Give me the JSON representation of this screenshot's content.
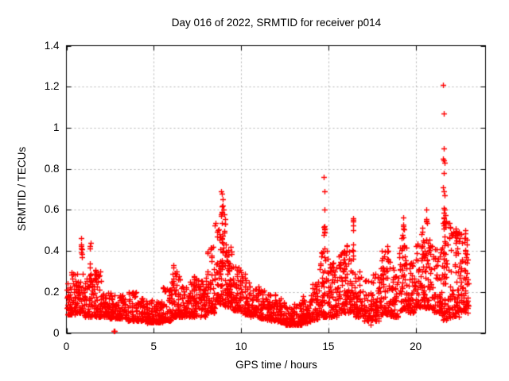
{
  "window": {
    "background": "#ffffff"
  },
  "chart_data": {
    "type": "scatter",
    "title": "Day 016 of 2022, SRMTID for receiver p014",
    "xlabel": "GPS time / hours",
    "ylabel": "SRMTID / TECUs",
    "xlim": [
      0,
      24
    ],
    "ylim": [
      0,
      1.4
    ],
    "x_ticks": [
      0,
      5,
      10,
      15,
      20
    ],
    "x_tick_labels": [
      "0",
      "5",
      "10",
      "15",
      "20"
    ],
    "y_ticks": [
      0,
      0.2,
      0.4,
      0.6,
      0.8,
      1.0,
      1.2,
      1.4
    ],
    "y_tick_labels": [
      "0",
      "0.2",
      "0.4",
      "0.6",
      "0.8",
      "1",
      "1.2",
      "1.4"
    ],
    "grid": true,
    "legend_position": "none",
    "marker": {
      "shape": "plus",
      "color": "#ff0000",
      "size": 7
    },
    "grid_color": "#b3b3b3",
    "border_color": "#000000",
    "point_seed": 20220116,
    "dense_bands": [
      [
        0.0,
        0.5,
        0.09,
        0.3,
        55
      ],
      [
        0.5,
        1.0,
        0.1,
        0.3,
        55
      ],
      [
        1.0,
        1.5,
        0.08,
        0.29,
        55
      ],
      [
        1.5,
        2.0,
        0.08,
        0.3,
        55
      ],
      [
        2.0,
        2.5,
        0.08,
        0.22,
        50
      ],
      [
        2.5,
        3.0,
        0.07,
        0.2,
        50
      ],
      [
        3.0,
        3.5,
        0.07,
        0.19,
        48
      ],
      [
        3.5,
        4.0,
        0.06,
        0.2,
        48
      ],
      [
        4.0,
        4.5,
        0.06,
        0.17,
        48
      ],
      [
        4.5,
        5.0,
        0.05,
        0.16,
        48
      ],
      [
        5.0,
        5.5,
        0.05,
        0.16,
        48
      ],
      [
        5.5,
        6.0,
        0.06,
        0.24,
        50
      ],
      [
        6.0,
        6.5,
        0.08,
        0.31,
        55
      ],
      [
        6.5,
        7.0,
        0.08,
        0.23,
        50
      ],
      [
        7.0,
        7.5,
        0.08,
        0.29,
        55
      ],
      [
        7.5,
        8.0,
        0.08,
        0.27,
        52
      ],
      [
        8.0,
        8.5,
        0.1,
        0.42,
        60
      ],
      [
        8.5,
        9.0,
        0.14,
        0.54,
        70
      ],
      [
        9.0,
        9.5,
        0.13,
        0.5,
        70
      ],
      [
        9.5,
        10.0,
        0.11,
        0.33,
        60
      ],
      [
        10.0,
        10.5,
        0.09,
        0.3,
        55
      ],
      [
        10.5,
        11.0,
        0.08,
        0.23,
        52
      ],
      [
        11.0,
        11.5,
        0.07,
        0.21,
        50
      ],
      [
        11.5,
        12.0,
        0.06,
        0.19,
        50
      ],
      [
        12.0,
        12.5,
        0.05,
        0.17,
        50
      ],
      [
        12.5,
        13.0,
        0.04,
        0.15,
        50
      ],
      [
        13.0,
        13.5,
        0.04,
        0.15,
        50
      ],
      [
        13.5,
        14.0,
        0.05,
        0.19,
        50
      ],
      [
        14.0,
        14.5,
        0.06,
        0.25,
        50
      ],
      [
        14.5,
        15.0,
        0.08,
        0.4,
        58
      ],
      [
        15.0,
        15.5,
        0.08,
        0.35,
        55
      ],
      [
        15.5,
        16.0,
        0.1,
        0.4,
        55
      ],
      [
        16.0,
        16.5,
        0.1,
        0.44,
        58
      ],
      [
        16.5,
        17.0,
        0.08,
        0.31,
        52
      ],
      [
        17.0,
        17.5,
        0.06,
        0.26,
        50
      ],
      [
        17.5,
        18.0,
        0.06,
        0.29,
        50
      ],
      [
        18.0,
        18.5,
        0.09,
        0.4,
        55
      ],
      [
        18.5,
        19.0,
        0.08,
        0.35,
        55
      ],
      [
        19.0,
        19.5,
        0.11,
        0.49,
        58
      ],
      [
        19.5,
        20.0,
        0.1,
        0.36,
        55
      ],
      [
        20.0,
        20.5,
        0.12,
        0.5,
        58
      ],
      [
        20.5,
        21.0,
        0.12,
        0.46,
        55
      ],
      [
        21.0,
        21.5,
        0.1,
        0.41,
        55
      ],
      [
        21.5,
        22.0,
        0.06,
        0.58,
        68
      ],
      [
        22.0,
        22.5,
        0.08,
        0.5,
        60
      ],
      [
        22.5,
        23.05,
        0.1,
        0.5,
        62
      ]
    ],
    "spike_clusters": [
      [
        0.85,
        0.06,
        0.3,
        0.47,
        8
      ],
      [
        1.37,
        0.05,
        0.28,
        0.45,
        6
      ],
      [
        1.65,
        0.06,
        0.25,
        0.33,
        5
      ],
      [
        6.1,
        0.08,
        0.22,
        0.33,
        6
      ],
      [
        7.3,
        0.08,
        0.2,
        0.3,
        6
      ],
      [
        8.9,
        0.1,
        0.44,
        0.62,
        9
      ],
      [
        9.1,
        0.07,
        0.38,
        0.56,
        6
      ],
      [
        14.75,
        0.05,
        0.4,
        0.52,
        8
      ],
      [
        15.9,
        0.06,
        0.3,
        0.42,
        6
      ],
      [
        16.4,
        0.05,
        0.4,
        0.56,
        7
      ],
      [
        18.4,
        0.07,
        0.3,
        0.43,
        7
      ],
      [
        19.3,
        0.06,
        0.4,
        0.6,
        8
      ],
      [
        20.35,
        0.06,
        0.38,
        0.52,
        7
      ],
      [
        20.62,
        0.05,
        0.45,
        0.6,
        6
      ],
      [
        21.65,
        0.08,
        0.35,
        0.6,
        10
      ],
      [
        22.3,
        0.06,
        0.38,
        0.53,
        7
      ],
      [
        22.85,
        0.07,
        0.3,
        0.52,
        8
      ]
    ],
    "outlier_points": [
      [
        2.7,
        0.01
      ],
      [
        2.76,
        0.01
      ],
      [
        8.88,
        0.69
      ],
      [
        8.92,
        0.68
      ],
      [
        8.95,
        0.65
      ],
      [
        8.93,
        0.62
      ],
      [
        9.0,
        0.6
      ],
      [
        9.03,
        0.58
      ],
      [
        14.74,
        0.76
      ],
      [
        14.76,
        0.69
      ],
      [
        14.78,
        0.6
      ],
      [
        17.4,
        0.04
      ],
      [
        20.62,
        0.6
      ],
      [
        21.58,
        1.21
      ],
      [
        21.62,
        1.07
      ],
      [
        21.6,
        0.9
      ],
      [
        21.56,
        0.85
      ],
      [
        21.61,
        0.84
      ],
      [
        21.65,
        0.83
      ],
      [
        21.63,
        0.78
      ],
      [
        21.57,
        0.71
      ],
      [
        21.6,
        0.69
      ],
      [
        21.64,
        0.67
      ],
      [
        21.59,
        0.61
      ],
      [
        21.66,
        0.6
      ]
    ]
  }
}
